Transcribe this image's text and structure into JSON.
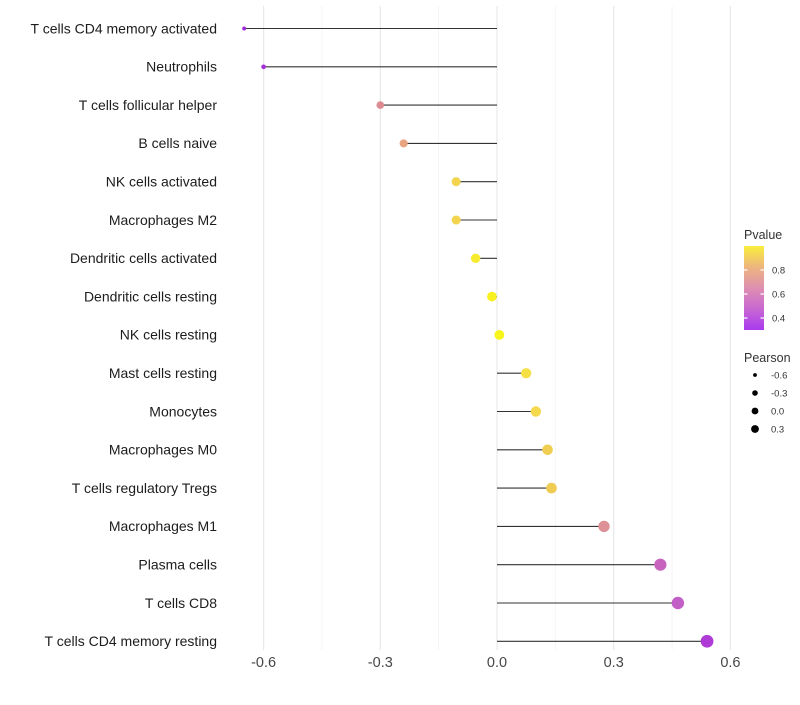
{
  "figure": {
    "background": "#ffffff"
  },
  "chart_data": {
    "type": "lollipop",
    "orientation": "horizontal",
    "title": "",
    "xlabel": "",
    "ylabel": "",
    "x_axis": {
      "range": [
        -0.69,
        0.67
      ],
      "ticks": [
        -0.6,
        -0.3,
        0.0,
        0.3,
        0.6
      ],
      "tick_labels": [
        "-0.6",
        "-0.3",
        "0.0",
        "0.3",
        "0.6"
      ],
      "minor_ticks": [
        -0.45,
        -0.15,
        0.15,
        0.45
      ],
      "grid": true
    },
    "series_name": "Pearson correlation vs immune cell type, colored by Pvalue",
    "rows": [
      {
        "label": "T cells CD4 memory activated",
        "pearson": -0.65,
        "color": "#9E2CDA"
      },
      {
        "label": "Neutrophils",
        "pearson": -0.6,
        "color": "#A231D8"
      },
      {
        "label": "T cells follicular helper",
        "pearson": -0.3,
        "color": "#DD8C92"
      },
      {
        "label": "B cells naive",
        "pearson": -0.24,
        "color": "#E9A582"
      },
      {
        "label": "NK cells activated",
        "pearson": -0.105,
        "color": "#F2D44E"
      },
      {
        "label": "Macrophages M2",
        "pearson": -0.105,
        "color": "#F2D44E"
      },
      {
        "label": "Dendritic cells activated",
        "pearson": -0.055,
        "color": "#F6EB2E"
      },
      {
        "label": "Dendritic cells resting",
        "pearson": -0.013,
        "color": "#F9F01F"
      },
      {
        "label": "NK cells resting",
        "pearson": 0.006,
        "color": "#F8F51C"
      },
      {
        "label": "Mast cells resting",
        "pearson": 0.075,
        "color": "#F6DF44"
      },
      {
        "label": "Monocytes",
        "pearson": 0.1,
        "color": "#F4D94C"
      },
      {
        "label": "Macrophages M0",
        "pearson": 0.13,
        "color": "#F0CE52"
      },
      {
        "label": "T cells regulatory  Tregs",
        "pearson": 0.14,
        "color": "#EFCB51"
      },
      {
        "label": "Macrophages M1",
        "pearson": 0.275,
        "color": "#DD9095"
      },
      {
        "label": "Plasma cells",
        "pearson": 0.42,
        "color": "#C765BE"
      },
      {
        "label": "T cells CD8",
        "pearson": 0.465,
        "color": "#C25FC7"
      },
      {
        "label": "T cells CD4 memory resting",
        "pearson": 0.54,
        "color": "#AF3BD7"
      }
    ],
    "legends": {
      "pvalue": {
        "title": "Pvalue",
        "tick_labels": [
          "0.8",
          "0.6",
          "0.4"
        ],
        "gradient_top_to_bottom": [
          "#F9EE3B",
          "#EDB57E",
          "#DE8FB0",
          "#C867D2",
          "#A93BEF"
        ]
      },
      "pearson": {
        "title": "Pearson",
        "items": [
          {
            "label": "-0.6"
          },
          {
            "label": "-0.3"
          },
          {
            "label": "0.0"
          },
          {
            "label": "0.3"
          }
        ]
      }
    }
  },
  "colors": {
    "grid_major": "#E9E9E9",
    "grid_minor": "#F4F4F4",
    "stem": "#333333",
    "category_text": "#1C1C1C",
    "tick_text": "#474747",
    "legend_text": "#333333"
  }
}
